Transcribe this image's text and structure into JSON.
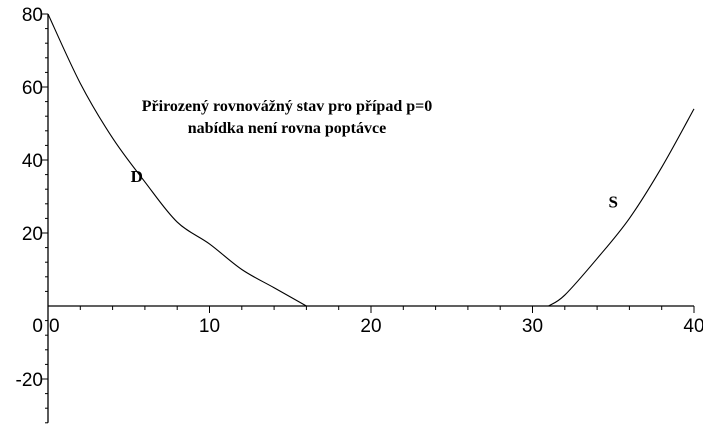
{
  "chart_data": {
    "type": "line",
    "title": "",
    "xlabel": "",
    "ylabel": "",
    "xlim": [
      0,
      40
    ],
    "ylim": [
      -32,
      80
    ],
    "grid": false,
    "x_ticks": [
      {
        "value": 0,
        "label": "0"
      },
      {
        "value": 10,
        "label": "10"
      },
      {
        "value": 20,
        "label": "20"
      },
      {
        "value": 30,
        "label": "30"
      },
      {
        "value": 40,
        "label": "40"
      }
    ],
    "y_ticks": [
      {
        "value": 80,
        "label": "80"
      },
      {
        "value": 60,
        "label": "60"
      },
      {
        "value": 40,
        "label": "40"
      },
      {
        "value": 20,
        "label": "20"
      },
      {
        "value": -20,
        "label": "-20"
      }
    ],
    "origin_label": "0",
    "annotations": [
      "Přirozený rovnovážný stav pro případ p=0",
      "nabídka není rovna poptávce"
    ],
    "series": [
      {
        "name": "D",
        "x": [
          0,
          2,
          4,
          6,
          8,
          10,
          12,
          14,
          16
        ],
        "y": [
          80,
          61,
          46,
          34,
          23,
          17,
          10,
          5,
          0
        ]
      },
      {
        "name": "S",
        "x": [
          31,
          32,
          34,
          36,
          38,
          40
        ],
        "y": [
          0,
          3,
          13,
          24,
          38,
          54
        ]
      }
    ]
  }
}
